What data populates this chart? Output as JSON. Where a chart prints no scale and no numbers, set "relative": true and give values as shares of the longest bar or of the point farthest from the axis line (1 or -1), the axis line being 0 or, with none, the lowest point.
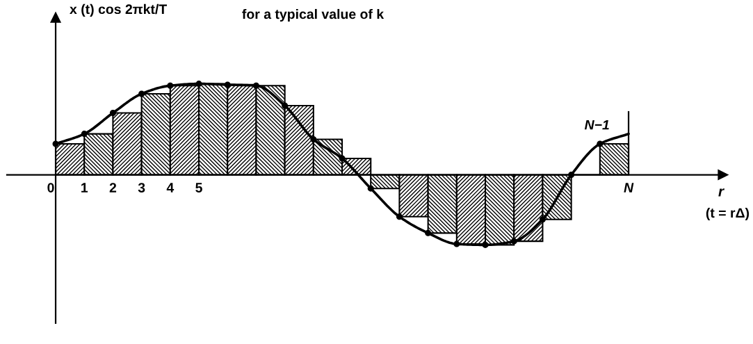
{
  "chart_data": {
    "type": "bar",
    "relative": true,
    "ylabel": "x (t) cos 2πkt/T",
    "xlabel": "r",
    "annotations": [
      "for a typical value of k",
      "(t = rΔ)",
      {
        "text": "N−1",
        "x": 19,
        "y": 0.34
      }
    ],
    "xlim": [
      -1.7,
      23.3
    ],
    "xticks": [
      0,
      1,
      2,
      3,
      4,
      5,
      {
        "value": 20,
        "label": "N"
      }
    ],
    "ref_lines": [
      {
        "axis": "x",
        "value": 20,
        "color": "#000000"
      }
    ],
    "series": [
      {
        "color": "#000000",
        "x": [
          0.5,
          1.5,
          2.5,
          3.5,
          4.5,
          5.5,
          6.5,
          7.5,
          8.5,
          9.5,
          10.5,
          11.5,
          12.5,
          13.5,
          14.5,
          15.5,
          16.5,
          17.5,
          18.5,
          19.5
        ],
        "values": [
          0.34,
          0.45,
          0.68,
          0.89,
          0.98,
          1.0,
          0.99,
          0.98,
          0.76,
          0.39,
          0.18,
          -0.15,
          -0.46,
          -0.64,
          -0.76,
          -0.77,
          -0.73,
          -0.49,
          0,
          0.34
        ]
      },
      {
        "type": "line",
        "color": "#000000",
        "x": [
          0,
          1,
          2,
          3,
          4,
          5,
          6,
          7,
          8,
          9,
          10,
          11,
          12,
          13,
          14,
          15,
          16,
          17,
          18,
          19,
          20
        ],
        "values": [
          0.34,
          0.45,
          0.68,
          0.89,
          0.98,
          1.0,
          0.99,
          0.98,
          0.76,
          0.39,
          0.18,
          -0.15,
          -0.46,
          -0.64,
          -0.76,
          -0.77,
          -0.73,
          -0.49,
          0,
          0.34,
          0.45
        ]
      },
      {
        "type": "scatter",
        "color": "#000000",
        "marker": "circle",
        "x": [
          0,
          1,
          2,
          3,
          4,
          5,
          6,
          7,
          8,
          9,
          10,
          11,
          12,
          13,
          14,
          15,
          16,
          17,
          18,
          19
        ],
        "values": [
          0.34,
          0.45,
          0.68,
          0.89,
          0.98,
          1.0,
          0.99,
          0.98,
          0.76,
          0.39,
          0.18,
          -0.15,
          -0.46,
          -0.64,
          -0.76,
          -0.77,
          -0.73,
          -0.49,
          0,
          0.34
        ]
      }
    ]
  }
}
